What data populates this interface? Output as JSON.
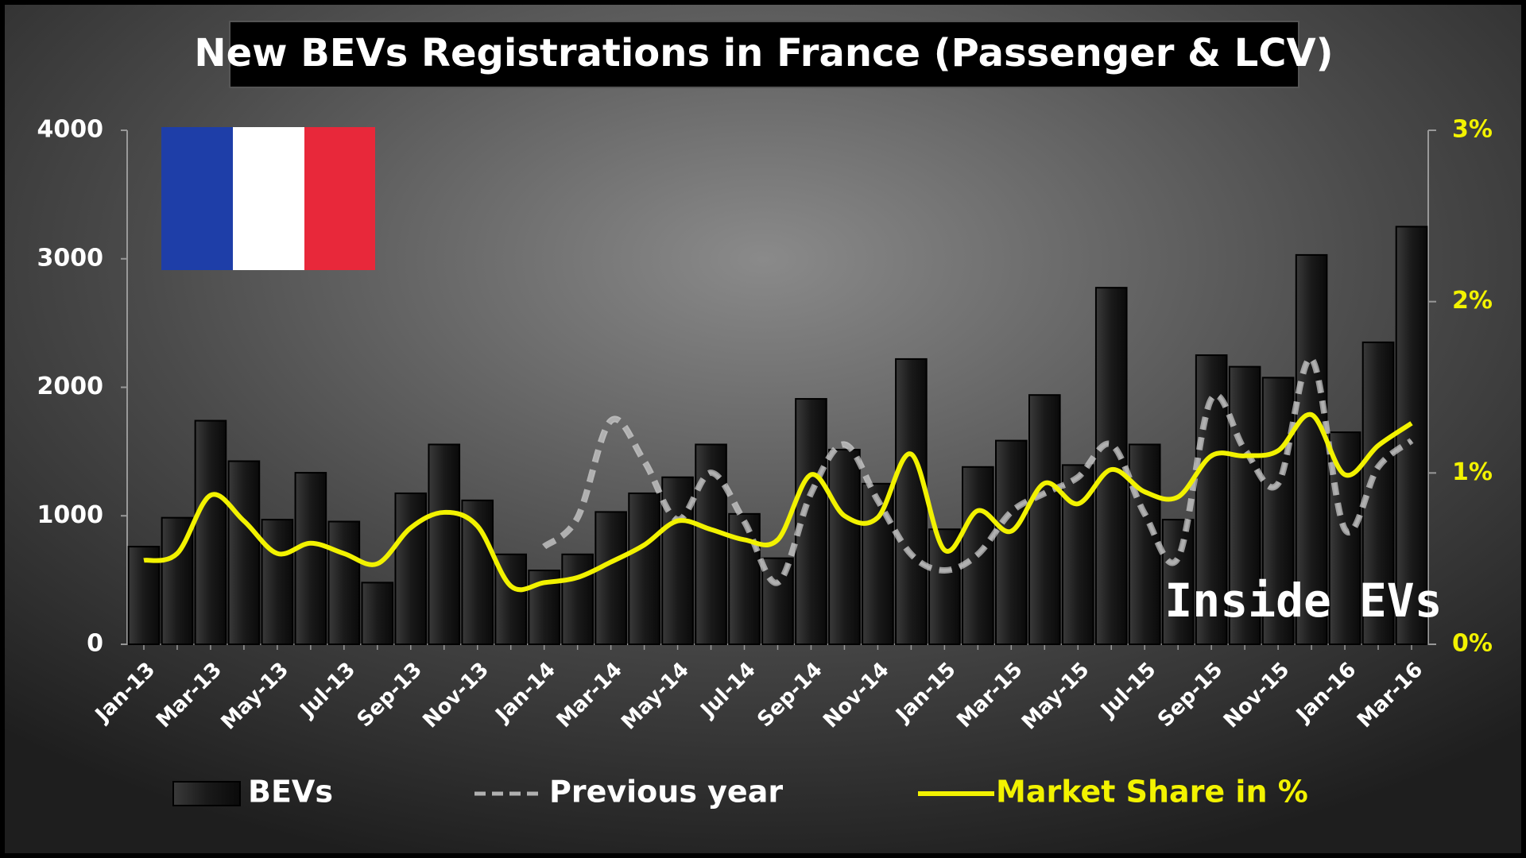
{
  "chart_data": {
    "type": "combo",
    "title": "New BEVs Registrations in France (Passenger & LCV)",
    "watermark": "Inside EVs",
    "categories": [
      "Jan-13",
      null,
      "Mar-13",
      null,
      "May-13",
      null,
      "Jul-13",
      null,
      "Sep-13",
      null,
      "Nov-13",
      null,
      "Jan-14",
      null,
      "Mar-14",
      null,
      "May-14",
      null,
      "Jul-14",
      null,
      "Sep-14",
      null,
      "Nov-14",
      null,
      "Jan-15",
      null,
      "Mar-15",
      null,
      "May-15",
      null,
      "Jul-15",
      null,
      "Sep-15",
      null,
      "Nov-15",
      null,
      "Jan-16",
      null,
      "Mar-16"
    ],
    "ylim": [
      0,
      4000
    ],
    "yticks": [
      0,
      1000,
      2000,
      3000,
      4000
    ],
    "y2lim": [
      0,
      3
    ],
    "y2ticks": [
      {
        "value": 0,
        "label": "0%"
      },
      {
        "value": 1,
        "label": "1%"
      },
      {
        "value": 2,
        "label": "2%"
      },
      {
        "value": 3,
        "label": "3%"
      }
    ],
    "series": [
      {
        "name": "BEVs",
        "type": "bar",
        "color": "#1c1c1c",
        "values": [
          760,
          985,
          1740,
          1425,
          970,
          1335,
          955,
          480,
          1175,
          1555,
          1120,
          700,
          575,
          700,
          1030,
          1175,
          1300,
          1555,
          1015,
          670,
          1910,
          1515,
          1250,
          2220,
          895,
          1380,
          1585,
          1940,
          1395,
          2775,
          1555,
          970,
          2250,
          2160,
          2075,
          3030,
          1650,
          2350,
          3250
        ]
      },
      {
        "name": "Previous year",
        "type": "dashed",
        "color": "#b0b0b0",
        "values": [
          null,
          null,
          null,
          null,
          null,
          null,
          null,
          null,
          null,
          null,
          null,
          null,
          760,
          985,
          1740,
          1425,
          970,
          1335,
          955,
          480,
          1175,
          1555,
          1120,
          700,
          575,
          700,
          1030,
          1175,
          1300,
          1555,
          1015,
          670,
          1910,
          1515,
          1250,
          2220,
          895,
          1380,
          1585
        ]
      },
      {
        "name": "Market Share in %",
        "type": "line",
        "axis": "y2",
        "color": "#f2f200",
        "values": [
          0.49,
          0.53,
          0.87,
          0.72,
          0.53,
          0.59,
          0.53,
          0.47,
          0.68,
          0.77,
          0.69,
          0.34,
          0.36,
          0.39,
          0.48,
          0.58,
          0.72,
          0.67,
          0.61,
          0.61,
          0.99,
          0.75,
          0.74,
          1.11,
          0.55,
          0.78,
          0.66,
          0.94,
          0.82,
          1.02,
          0.89,
          0.86,
          1.1,
          1.1,
          1.13,
          1.34,
          0.99,
          1.16,
          1.29
        ]
      }
    ]
  }
}
